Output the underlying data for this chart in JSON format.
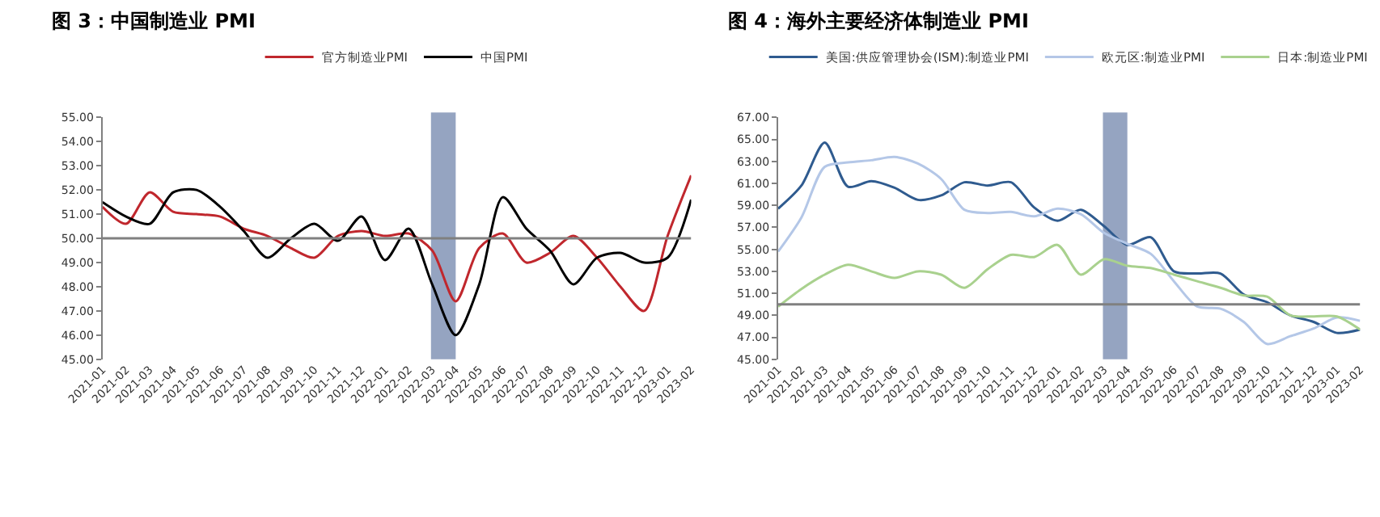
{
  "chart_data": [
    {
      "type": "line",
      "title": "图 3：中国制造业 PMI",
      "categories": [
        "2021-01",
        "2021-02",
        "2021-03",
        "2021-04",
        "2021-05",
        "2021-06",
        "2021-07",
        "2021-08",
        "2021-09",
        "2021-10",
        "2021-11",
        "2021-12",
        "2022-01",
        "2022-02",
        "2022-03",
        "2022-04",
        "2022-05",
        "2022-06",
        "2022-07",
        "2022-08",
        "2022-09",
        "2022-10",
        "2022-11",
        "2022-12",
        "2023-01",
        "2023-02"
      ],
      "series": [
        {
          "name": "官方制造业PMI",
          "color": "#c0272d",
          "values": [
            51.3,
            50.6,
            51.9,
            51.1,
            51.0,
            50.9,
            50.4,
            50.1,
            49.6,
            49.2,
            50.1,
            50.3,
            50.1,
            50.2,
            49.5,
            47.4,
            49.6,
            50.2,
            49.0,
            49.4,
            50.1,
            49.2,
            48.0,
            47.0,
            50.1,
            52.6
          ]
        },
        {
          "name": "中国PMI",
          "color": "#000000",
          "values": [
            51.5,
            50.9,
            50.6,
            51.9,
            52.0,
            51.3,
            50.3,
            49.2,
            50.0,
            50.6,
            49.9,
            50.9,
            49.1,
            50.4,
            48.1,
            46.0,
            48.1,
            51.7,
            50.4,
            49.5,
            48.1,
            49.2,
            49.4,
            49.0,
            49.2,
            51.6
          ]
        }
      ],
      "ylim": [
        45,
        55
      ],
      "yticks": [
        {
          "value": 45,
          "label": "45.00"
        },
        {
          "value": 46,
          "label": "46.00"
        },
        {
          "value": 47,
          "label": "47.00"
        },
        {
          "value": 48,
          "label": "48.00"
        },
        {
          "value": 49,
          "label": "49.00"
        },
        {
          "value": 50,
          "label": "50.00"
        },
        {
          "value": 51,
          "label": "51.00"
        },
        {
          "value": 52,
          "label": "52.00"
        },
        {
          "value": 53,
          "label": "53.00"
        },
        {
          "value": 54,
          "label": "54.00"
        },
        {
          "value": 55,
          "label": "55.00"
        }
      ],
      "ref_lines": [
        {
          "axis": "y",
          "value": 50,
          "color": "#808080"
        }
      ],
      "bands": [
        {
          "axis": "x",
          "from": "2022-03",
          "to": "2022-04",
          "color": "#8a9aba"
        }
      ],
      "legend": "top",
      "grid": false
    },
    {
      "type": "line",
      "title": "图 4：海外主要经济体制造业 PMI",
      "categories": [
        "2021-01",
        "2021-02",
        "2021-03",
        "2021-04",
        "2021-05",
        "2021-06",
        "2021-07",
        "2021-08",
        "2021-09",
        "2021-10",
        "2021-11",
        "2021-12",
        "2022-01",
        "2022-02",
        "2022-03",
        "2022-04",
        "2022-05",
        "2022-06",
        "2022-07",
        "2022-08",
        "2022-09",
        "2022-10",
        "2022-11",
        "2022-12",
        "2023-01",
        "2023-02"
      ],
      "series": [
        {
          "name": "美国:供应管理协会(ISM):制造业PMI",
          "color": "#2f5b8f",
          "values": [
            58.7,
            60.8,
            64.7,
            60.7,
            61.2,
            60.6,
            59.5,
            59.9,
            61.1,
            60.8,
            61.1,
            58.8,
            57.6,
            58.6,
            57.1,
            55.4,
            56.1,
            53.0,
            52.8,
            52.8,
            50.9,
            50.2,
            49.0,
            48.4,
            47.4,
            47.7
          ]
        },
        {
          "name": "欧元区:制造业PMI",
          "color": "#b4c7e7",
          "values": [
            54.8,
            57.9,
            62.5,
            62.9,
            63.1,
            63.4,
            62.8,
            61.4,
            58.6,
            58.3,
            58.4,
            58.0,
            58.7,
            58.2,
            56.5,
            55.5,
            54.6,
            52.1,
            49.8,
            49.6,
            48.4,
            46.4,
            47.1,
            47.8,
            48.8,
            48.5
          ]
        },
        {
          "name": "日本:制造业PMI",
          "color": "#a9d18e",
          "values": [
            49.8,
            51.4,
            52.7,
            53.6,
            53.0,
            52.4,
            53.0,
            52.7,
            51.5,
            53.2,
            54.5,
            54.3,
            55.4,
            52.7,
            54.1,
            53.5,
            53.3,
            52.7,
            52.1,
            51.5,
            50.8,
            50.7,
            49.0,
            48.9,
            48.9,
            47.7
          ]
        }
      ],
      "ylim": [
        45,
        67
      ],
      "yticks": [
        {
          "value": 45,
          "label": "45.00"
        },
        {
          "value": 47,
          "label": "47.00"
        },
        {
          "value": 49,
          "label": "49.00"
        },
        {
          "value": 51,
          "label": "51.00"
        },
        {
          "value": 53,
          "label": "53.00"
        },
        {
          "value": 55,
          "label": "55.00"
        },
        {
          "value": 57,
          "label": "57.00"
        },
        {
          "value": 59,
          "label": "59.00"
        },
        {
          "value": 61,
          "label": "61.00"
        },
        {
          "value": 63,
          "label": "63.00"
        },
        {
          "value": 65,
          "label": "65.00"
        },
        {
          "value": 67,
          "label": "67.00"
        }
      ],
      "ref_lines": [
        {
          "axis": "y",
          "value": 50,
          "color": "#808080"
        }
      ],
      "bands": [
        {
          "axis": "x",
          "from": "2022-03",
          "to": "2022-04",
          "color": "#8a9aba"
        }
      ],
      "legend": "top",
      "grid": false
    }
  ]
}
